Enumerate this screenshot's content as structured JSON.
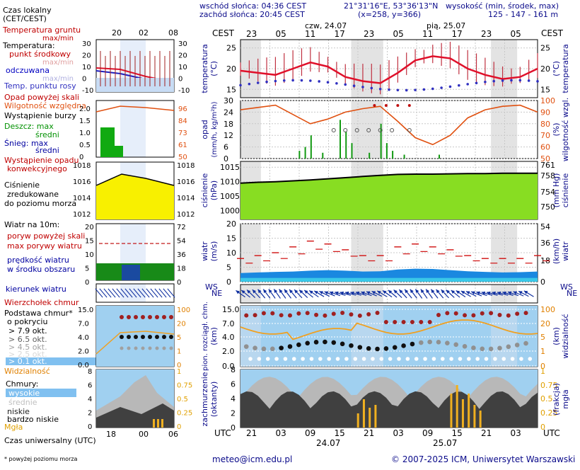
{
  "header": {
    "sunrise": "wschód słońca: 04:36 CEST",
    "sunset": "zachód słońca: 20:45 CEST",
    "coords": "21°31'16\"E, 53°36'13\"N",
    "grid": "(x=258, y=366)",
    "elev_title": "wysokość (min, środek, max)",
    "elev_values": "125 - 147 - 161 m",
    "tz_left": "CEST",
    "tz_right": "CEST",
    "day1": "czw, 24.07",
    "day2": "pią, 25.07",
    "top_hours": [
      "23",
      "05",
      "11",
      "17",
      "23",
      "05",
      "11",
      "17",
      "23",
      "05"
    ],
    "bottom_hours": [
      "21",
      "03",
      "09",
      "15",
      "21",
      "03",
      "09",
      "15",
      "21",
      "03"
    ],
    "bottom_date1": "24.07",
    "bottom_date2": "25.07",
    "utc_left": "UTC",
    "utc_right": "UTC"
  },
  "legend": {
    "local_time": "Czas lokalny",
    "local_time_sub": "(CET/CEST)",
    "local_hours": [
      "20",
      "02",
      "08"
    ],
    "ground_temp": "Temperatura gruntu",
    "maxmin": "max/min",
    "temperature": "Temperatura:",
    "mid_point": "punkt środkowy",
    "maxmin2": "max/min",
    "felt": "odczuwana",
    "maxmin3": "max/min",
    "dewpoint": "Temp. punktu rosy",
    "temp_ticks": [
      "30",
      "20",
      "10",
      "0",
      "-10"
    ],
    "precip_above": "Opad powyżej skali",
    "rel_humidity": "Wilgotność względna",
    "storm": "Wystąpienie burzy",
    "rain": "Deszcz: max",
    "rain_mid": "średni",
    "snow": "Śnieg: max",
    "snow_mid": "średni",
    "conv_precip1": "Wystąpienie opadu",
    "conv_precip2": "konwekcyjnego",
    "precip_ticks": [
      "2.0",
      "1.5",
      "1.0",
      "0.5",
      "0"
    ],
    "hum_ticks": [
      "96",
      "84",
      "73",
      "61",
      "50"
    ],
    "pressure1": "Ciśnienie",
    "pressure2": "zredukowane",
    "pressure3": "do poziomu morza",
    "press_ticks": [
      "1018",
      "1016",
      "1014",
      "1012"
    ],
    "wind10": "Wiatr na 10m:",
    "gust_above": "poryw powyżej skali",
    "max_gust": "max porywy wiatru",
    "avg_wind1": "prędkość wiatru",
    "avg_wind2": "w środku obszaru",
    "wind_ticks": [
      "20",
      "15",
      "10",
      "5",
      "0"
    ],
    "wind_ticks_kmh": [
      "72",
      "54",
      "36",
      "18",
      "0"
    ],
    "wind_dir": "kierunek wiatru",
    "cloud_top": "Wierzchołek chmur",
    "cloud_base1": "Podstawa chmur*",
    "cloud_base2": "o pokryciu",
    "okt79": "> 7.9 okt.",
    "okt65": "> 6.5 okt.",
    "okt45": "> 4.5 okt.",
    "okt25": "> 2.5 okt.",
    "okt01": "> 0.1 okt.",
    "visibility": "Widzialność",
    "cb_ticks": [
      "15.0",
      "7.0",
      "4.0",
      "2.0",
      "0.0"
    ],
    "vis_ticks": [
      "100",
      "20",
      "5",
      "1",
      "0"
    ],
    "clouds": "Chmury:",
    "high": "wysokie",
    "middle": "średnie",
    "low": "niskie",
    "very_low": "bardzo niskie",
    "fog": "Mgła",
    "cl_ticks": [
      "8",
      "6",
      "4",
      "2",
      "0"
    ],
    "fog_ticks": [
      "1",
      "0.75",
      "0.5",
      "0.25",
      "0"
    ],
    "utc_label": "Czas uniwersalny (UTC)",
    "utc_hours": [
      "18",
      "00",
      "06"
    ],
    "footnote": "* powyżej poziomu morza"
  },
  "footer": {
    "email": "meteo@icm.edu.pl",
    "copyright": "© 2007-2025 ICM, Uniwersytet Warszawski"
  },
  "axes": {
    "temp_label": "temperatura",
    "temp_unit": "(°C)",
    "temp_ticks": [
      25,
      20,
      15
    ],
    "precip_label": "opad",
    "precip_unit": "(mm/h, kg/m²h)",
    "precip_ticks": [
      30,
      24,
      18,
      12,
      6,
      0
    ],
    "hum_label": "wilgotność wzgl.",
    "hum_unit": "(%)",
    "hum_ticks": [
      100,
      90,
      80,
      70,
      60,
      50
    ],
    "press_label": "ciśnienie",
    "press_unit": "(hPa)",
    "press_ticks": [
      1015,
      1010,
      1005,
      1000
    ],
    "press_mm_label": "ciśnienie",
    "press_mm_unit": "(mm Hg)",
    "press_mm_ticks": [
      761,
      758,
      754,
      750
    ],
    "wind_label": "wiatr",
    "wind_unit": "(m/s)",
    "wind_ticks": [
      20,
      15,
      10,
      5,
      0
    ],
    "wind_kmh_label": "wiatr",
    "wind_kmh_unit": "(km/h)",
    "wind_kmh_ticks": [
      54,
      36,
      18,
      0
    ],
    "dir_ws": "WS",
    "dir_ne": "NE",
    "cb_label": "pion. rozciągł. chm.",
    "cb_unit": "(km)",
    "cb_ticks": [
      "15.0",
      "7.0",
      "4.0",
      "2.0",
      "0.0"
    ],
    "vis_label": "widzialność",
    "vis_unit": "(km)",
    "vis_ticks": [
      100,
      20,
      5,
      1,
      0
    ],
    "cl_label": "zachmurzenie",
    "cl_unit": "(oktanty)",
    "cl_ticks": [
      8,
      6,
      4,
      2,
      0
    ],
    "fog_label": "mgła",
    "fog_unit": "(frakcja)",
    "fog_ticks": [
      "1",
      "0.75",
      "0.5",
      "0.25",
      "0"
    ]
  },
  "colors": {
    "temp_line": "#e0102a",
    "dewpoint": "#3030c0",
    "humidity": "#e05010",
    "pressure_fill": "#88dd22",
    "wind_fill": "#1a88e0",
    "gust": "#d01010",
    "arrow": "#1030a0",
    "night_band": "#e0e0e0",
    "cloud_panel": "#a0d0f0",
    "visibility": "#f0a020"
  },
  "chart_data": {
    "type": "line",
    "x_hours_from_start": [
      0,
      3,
      6,
      9,
      12,
      15,
      18,
      21,
      24,
      27,
      30,
      33,
      36,
      39,
      42,
      45,
      48,
      51
    ],
    "series": [
      {
        "name": "temperatura",
        "values": [
          19.5,
          19.0,
          18.5,
          20.0,
          21.5,
          20.5,
          18.0,
          17.0,
          16.5,
          19.0,
          22.0,
          23.0,
          22.5,
          20.0,
          18.5,
          17.5,
          18.0,
          20.0
        ]
      },
      {
        "name": "wilgotność wzgl.",
        "values": [
          92,
          94,
          96,
          88,
          80,
          84,
          90,
          93,
          95,
          82,
          68,
          62,
          70,
          85,
          92,
          95,
          96,
          90
        ]
      },
      {
        "name": "ciśnienie",
        "values": [
          1009.5,
          1009.8,
          1010,
          1010.3,
          1010.6,
          1011,
          1011.4,
          1011.8,
          1012.2,
          1012.5,
          1012.6,
          1012.6,
          1012.7,
          1012.8,
          1012.8,
          1012.9,
          1012.9,
          1012.9
        ]
      },
      {
        "name": "wiatr",
        "values": [
          3.0,
          3.2,
          3.4,
          3.5,
          3.8,
          4.0,
          3.8,
          3.5,
          3.6,
          4.2,
          4.5,
          4.4,
          4.0,
          3.6,
          3.4,
          3.2,
          3.3,
          3.5
        ]
      },
      {
        "name": "porywy",
        "values": [
          8,
          9,
          10,
          12,
          14,
          13,
          11,
          9,
          9,
          12,
          13,
          12,
          11,
          9,
          8,
          8,
          8,
          9
        ]
      }
    ]
  }
}
